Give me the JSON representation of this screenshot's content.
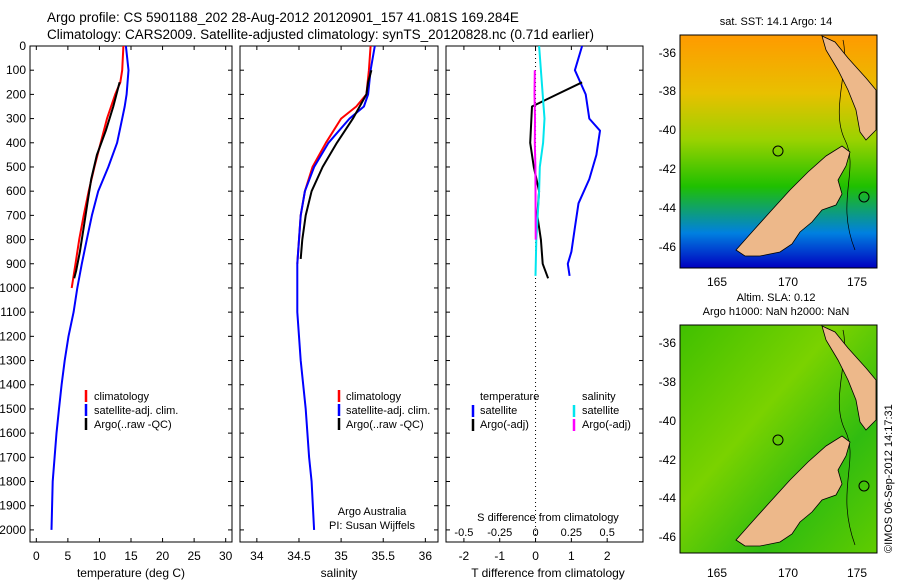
{
  "header": {
    "line1": "Argo profile: CS 5901188_202 28-Aug-2012 20120901_157 41.081S 169.284E",
    "line2": "Climatology: CARS2009. Satellite-adjusted climatology: synTS_20120828.nc (0.71d earlier)"
  },
  "colors": {
    "climatology": "#ff0000",
    "satellite": "#0000ff",
    "argo": "#000000",
    "sal_satellite": "#00e5ee",
    "sal_argo": "#ff00ff"
  },
  "chart_data": [
    {
      "type": "line",
      "id": "temperature",
      "xlabel": "temperature (deg C)",
      "xlim": [
        -1,
        31
      ],
      "ylim": [
        2050,
        0
      ],
      "xticks": [
        0,
        5,
        10,
        15,
        20,
        25,
        30
      ],
      "yticks": [
        0,
        100,
        200,
        300,
        400,
        500,
        600,
        700,
        800,
        900,
        1000,
        1100,
        1200,
        1300,
        1400,
        1500,
        1600,
        1700,
        1800,
        1900,
        2000
      ],
      "legend": [
        "climatology",
        "satellite-adj. clim.",
        "Argo(..raw -QC)"
      ],
      "series": [
        {
          "name": "climatology",
          "color": "#ff0000",
          "x": [
            13.8,
            13.7,
            13.6,
            13.3,
            12.5,
            11.2,
            10.2,
            9.2,
            8.3,
            7.5,
            6.8,
            6.2,
            5.6
          ],
          "y": [
            0,
            50,
            100,
            150,
            200,
            300,
            400,
            500,
            600,
            700,
            800,
            900,
            1000
          ]
        },
        {
          "name": "satellite-adj. clim.",
          "color": "#0000ff",
          "x": [
            14.2,
            14.6,
            14.3,
            14.0,
            13.6,
            12.8,
            11.4,
            9.8,
            8.8,
            8.0,
            7.2,
            6.5,
            5.9,
            5.1,
            4.5,
            4.0,
            3.6,
            3.2,
            2.9,
            2.6,
            2.5,
            2.4
          ],
          "y": [
            0,
            100,
            200,
            250,
            300,
            400,
            500,
            600,
            700,
            800,
            900,
            1000,
            1100,
            1200,
            1300,
            1400,
            1500,
            1600,
            1700,
            1800,
            1900,
            2000
          ]
        },
        {
          "name": "Argo(..raw -QC)",
          "color": "#000000",
          "x": [
            13.2,
            12.2,
            11.0,
            9.6,
            8.7,
            8.1,
            7.5,
            6.9,
            6.3,
            6.0
          ],
          "y": [
            150,
            250,
            350,
            450,
            550,
            650,
            750,
            850,
            930,
            960
          ]
        }
      ]
    },
    {
      "type": "line",
      "id": "salinity",
      "xlabel": "salinity",
      "xlim": [
        33.8,
        36.15
      ],
      "ylim": [
        2050,
        0
      ],
      "xticks": [
        34,
        34.5,
        35,
        35.5,
        36
      ],
      "legend": [
        "climatology",
        "satellite-adj. clim.",
        "Argo(..raw -QC)"
      ],
      "series": [
        {
          "name": "climatology",
          "color": "#ff0000",
          "x": [
            35.35,
            35.33,
            35.3,
            35.18,
            35.0,
            34.82,
            34.66,
            34.57,
            34.52,
            34.5,
            34.48
          ],
          "y": [
            0,
            100,
            200,
            250,
            300,
            400,
            500,
            600,
            700,
            800,
            900
          ]
        },
        {
          "name": "satellite-adj. clim.",
          "color": "#0000ff",
          "x": [
            35.4,
            35.35,
            35.32,
            35.27,
            35.1,
            34.85,
            34.68,
            34.57,
            34.52,
            34.5,
            34.48,
            34.48,
            34.5,
            34.52,
            34.55,
            34.58,
            34.6,
            34.62,
            34.65,
            34.68
          ],
          "y": [
            0,
            100,
            200,
            250,
            300,
            400,
            500,
            600,
            700,
            800,
            900,
            1100,
            1200,
            1300,
            1400,
            1500,
            1600,
            1700,
            1800,
            2000
          ]
        },
        {
          "name": "Argo(..raw -QC)",
          "color": "#000000",
          "x": [
            35.36,
            35.32,
            35.3,
            35.14,
            34.95,
            34.78,
            34.65,
            34.58,
            34.54,
            34.52
          ],
          "y": [
            100,
            150,
            200,
            300,
            400,
            500,
            600,
            700,
            800,
            880
          ]
        }
      ],
      "annotation": [
        "Argo Australia",
        "PI: Susan Wijffels"
      ]
    },
    {
      "type": "line",
      "id": "difference",
      "xlabel": "T difference from climatology",
      "xlabel_top": "S difference from climatology",
      "xlim": [
        -2.5,
        3
      ],
      "ylim": [
        2050,
        0
      ],
      "xticks": [
        -2,
        -1,
        0,
        1,
        2
      ],
      "xticks_top": [
        "-0.5",
        "-0.25",
        "0",
        "0.25",
        "0.5"
      ],
      "legend_titles": [
        "temperature",
        "salinity"
      ],
      "legend": [
        "satellite",
        "Argo(-adj)",
        "satellite",
        "Argo(-adj)"
      ],
      "series": [
        {
          "name": "temperature satellite",
          "color": "#0000ff",
          "x": [
            1.3,
            1.1,
            1.4,
            1.5,
            1.8,
            1.7,
            1.5,
            1.2,
            1.1,
            1.0,
            0.9,
            0.95
          ],
          "y": [
            0,
            100,
            200,
            300,
            350,
            450,
            550,
            650,
            750,
            850,
            900,
            950
          ]
        },
        {
          "name": "temperature Argo(-adj)",
          "color": "#000000",
          "x": [
            1.3,
            0.6,
            -0.1,
            -0.15,
            -0.05,
            0.1,
            0.05,
            0.15,
            0.2,
            0.35
          ],
          "y": [
            150,
            200,
            250,
            400,
            500,
            600,
            700,
            800,
            900,
            960
          ]
        },
        {
          "name": "salinity satellite",
          "color": "#00e5ee",
          "x": [
            0.1,
            0.15,
            0.2,
            0.25,
            0.21,
            0.12,
            0.1,
            0.02,
            0.0
          ],
          "y": [
            0,
            100,
            200,
            300,
            400,
            500,
            600,
            800,
            950
          ]
        },
        {
          "name": "salinity Argo(-adj)",
          "color": "#ff00ff",
          "x": [
            -0.02,
            -0.03,
            -0.015,
            -0.02,
            -0.005,
            0.0,
            0.005
          ],
          "y": [
            100,
            200,
            300,
            400,
            500,
            600,
            800
          ]
        }
      ]
    }
  ],
  "maps": {
    "sst": {
      "title": "sat. SST: 14.1 Argo: 14",
      "lat_ticks": [
        "-36",
        "-38",
        "-40",
        "-42",
        "-44",
        "-46"
      ],
      "lon_ticks": [
        "165",
        "170",
        "175"
      ]
    },
    "sla": {
      "title_line1": "Altim. SLA: 0.12",
      "title_line2": "Argo h1000: NaN h2000: NaN",
      "lat_ticks": [
        "-36",
        "-38",
        "-40",
        "-42",
        "-44",
        "-46"
      ],
      "lon_ticks": [
        "165",
        "170",
        "175"
      ]
    }
  },
  "credit": "©IMOS 06-Sep-2012 14:17:31"
}
